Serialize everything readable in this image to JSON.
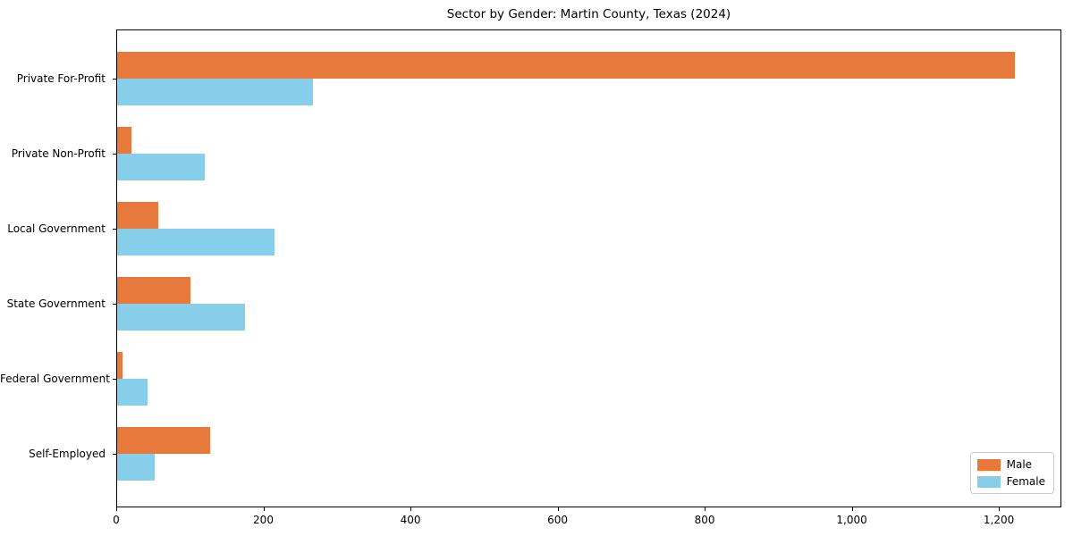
{
  "figure": {
    "title": "Sector by Gender: Martin County, Texas (2024)",
    "background_color": "#ffffff",
    "axis_color": "#000000"
  },
  "chart_data": {
    "type": "bar",
    "orientation": "horizontal",
    "title": "Sector by Gender: Martin County, Texas (2024)",
    "categories": [
      "Private For-Profit",
      "Private Non-Profit",
      "Local Government",
      "State Government",
      "Federal Government",
      "Self-Employed"
    ],
    "series": [
      {
        "name": "Male",
        "color": "#e8793d",
        "values": [
          1222,
          21,
          57,
          101,
          9,
          128
        ]
      },
      {
        "name": "Female",
        "color": "#87ceeb",
        "values": [
          268,
          120,
          215,
          175,
          43,
          52
        ]
      }
    ],
    "xlabel": "",
    "ylabel": "",
    "xlim": [
      0,
      1285
    ],
    "xticks": [
      0,
      200,
      400,
      600,
      800,
      1000,
      1200
    ],
    "xtick_labels": [
      "0",
      "200",
      "400",
      "600",
      "800",
      "1,000",
      "1,200"
    ],
    "grid": false,
    "legend": {
      "position": "lower right",
      "entries": [
        {
          "label": "Male",
          "color": "#e8793d"
        },
        {
          "label": "Female",
          "color": "#87ceeb"
        }
      ]
    }
  }
}
